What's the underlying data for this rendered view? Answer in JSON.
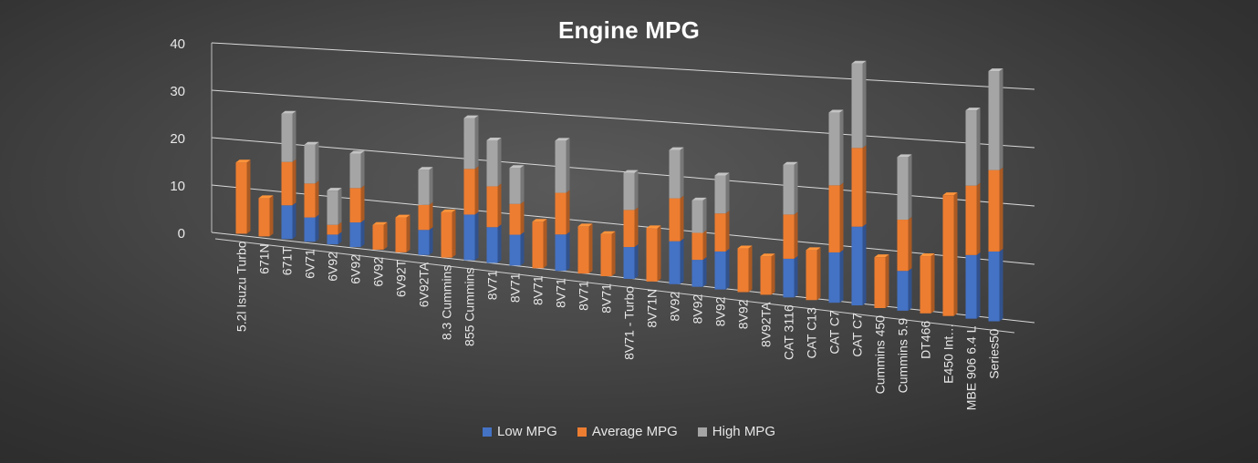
{
  "chart_data": {
    "type": "bar",
    "stacked": true,
    "three_d": true,
    "title": "Engine MPG",
    "xlabel": "",
    "ylabel": "",
    "ylim": [
      0,
      40
    ],
    "yticks": [
      0,
      10,
      20,
      30,
      40
    ],
    "grid": true,
    "legend_position": "bottom",
    "categories": [
      "5.2l Isuzu Turbo",
      "671N",
      "671T",
      "6V71",
      "6V92",
      "6V92",
      "6V92",
      "6V92T",
      "6V92TA",
      "8.3 Cummins",
      "855 Cummins",
      "8V71",
      "8V71",
      "8V71",
      "8V71",
      "8V71",
      "8V71",
      "8V71 - Turbo",
      "8V71N",
      "8V92",
      "8V92",
      "8V92",
      "8V92",
      "8V92TA",
      "CAT 3116",
      "CAT C13",
      "CAT C7",
      "CAT C7",
      "Cummins 450",
      "Cummins 5.9",
      "DT466",
      "E450 Int…",
      "MBE 906 6.4 L",
      "Series50"
    ],
    "series": [
      {
        "name": "Low MPG",
        "color": "#4472C4",
        "values": [
          0,
          0,
          7,
          5,
          2,
          5,
          0,
          0,
          5,
          0,
          9,
          7,
          6,
          0,
          7,
          0,
          0,
          6,
          0,
          8,
          5,
          7,
          0,
          0,
          7,
          0,
          9,
          14,
          0,
          7,
          0,
          0,
          11,
          12
        ]
      },
      {
        "name": "Average MPG",
        "color": "#ED7D31",
        "values": [
          15,
          8,
          9,
          7,
          2,
          7,
          5,
          7,
          5,
          9,
          9,
          8,
          6,
          9,
          8,
          9,
          8,
          7,
          10,
          8,
          5,
          7,
          8,
          7,
          8,
          9,
          12,
          14,
          9,
          9,
          10,
          21,
          12,
          14
        ]
      },
      {
        "name": "High MPG",
        "color": "#A5A5A5",
        "values": [
          0,
          0,
          10,
          8,
          7,
          7,
          0,
          0,
          7,
          0,
          10,
          9,
          7,
          0,
          10,
          0,
          0,
          7,
          0,
          9,
          6,
          7,
          0,
          0,
          9,
          0,
          13,
          15,
          0,
          11,
          0,
          0,
          13,
          17
        ]
      }
    ]
  }
}
